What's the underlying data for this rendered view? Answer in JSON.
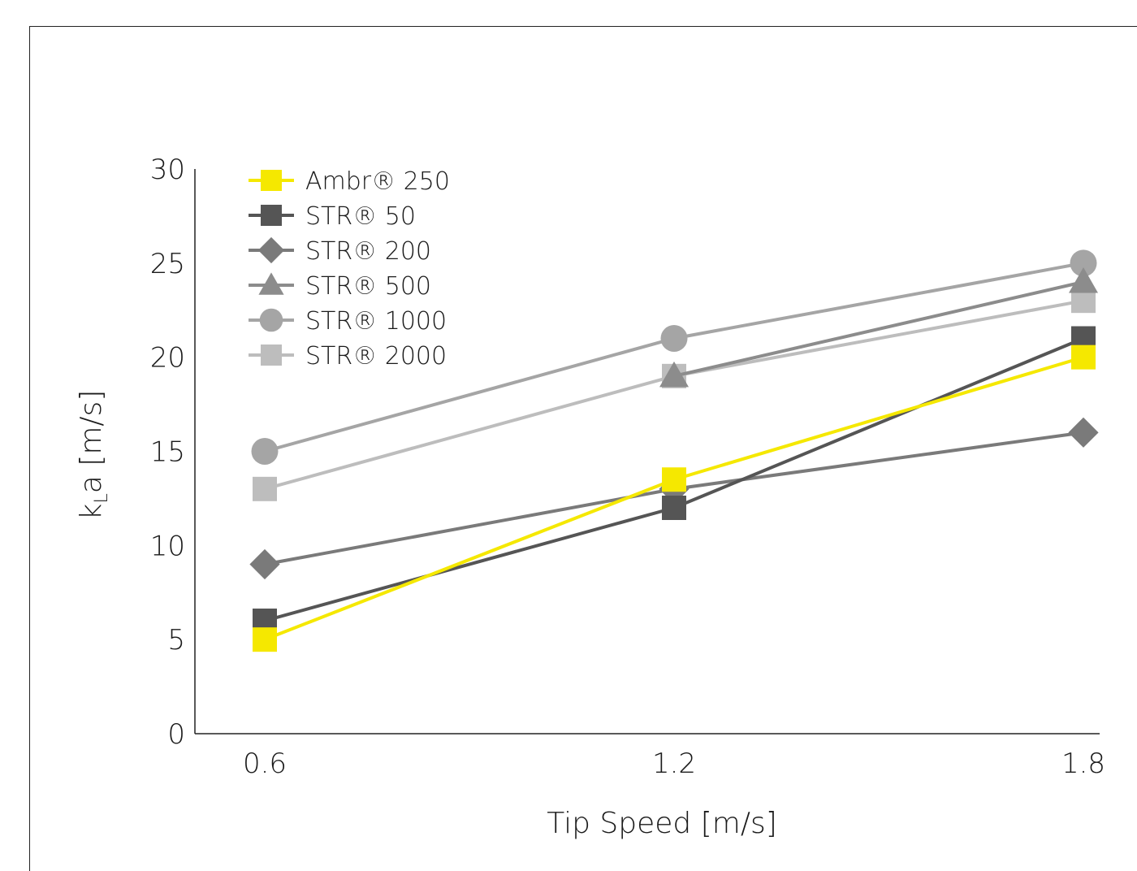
{
  "chart_data": {
    "type": "line",
    "x": [
      0.6,
      1.2,
      1.8
    ],
    "x_tick_labels": [
      "0.6",
      "1.2",
      "1.8"
    ],
    "y_ticks": [
      0,
      5,
      10,
      15,
      20,
      25,
      30
    ],
    "ylim": [
      0,
      30
    ],
    "xlabel": "Tip Speed [m/s]",
    "ylabel": {
      "main": "k",
      "subscript": "L",
      "rest": "a [m/s]"
    },
    "legend_position": "top-left",
    "grid": false,
    "series": [
      {
        "name": "Ambr® 250",
        "values": [
          5,
          13.5,
          20
        ],
        "color": "#f5e800",
        "marker": "square"
      },
      {
        "name": "STR® 50",
        "values": [
          6,
          12,
          21
        ],
        "color": "#555555",
        "marker": "square"
      },
      {
        "name": "STR® 200",
        "values": [
          9,
          13,
          16
        ],
        "color": "#7a7a7a",
        "marker": "diamond"
      },
      {
        "name": "STR® 500",
        "values": [
          null,
          19,
          24
        ],
        "color": "#8c8c8c",
        "marker": "triangle"
      },
      {
        "name": "STR® 1000",
        "values": [
          15,
          21,
          25
        ],
        "color": "#a5a5a5",
        "marker": "circle"
      },
      {
        "name": "STR® 2000",
        "values": [
          13,
          19,
          23
        ],
        "color": "#bdbdbd",
        "marker": "square"
      }
    ]
  }
}
